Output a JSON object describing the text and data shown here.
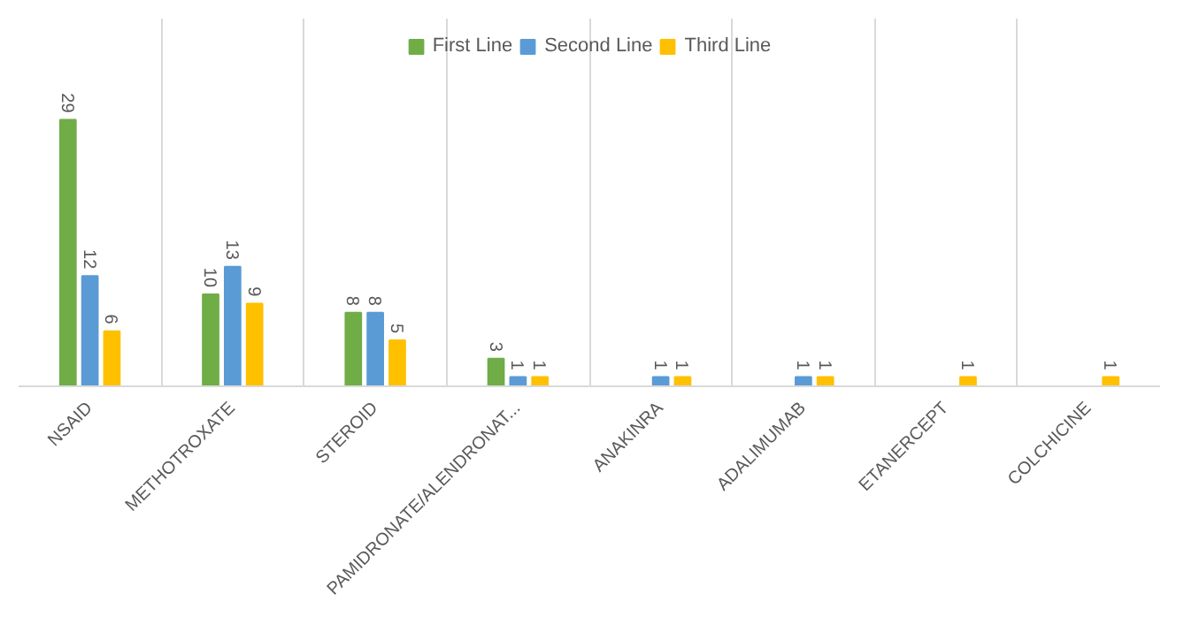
{
  "chart_data": {
    "type": "bar",
    "categories": [
      "NSAID",
      "METHOTROXATE",
      "STEROID",
      "PAMIDRONATE/ALENDRONAT...",
      "ANAKINRA",
      "ADALIMUMAB",
      "ETANERCEPT",
      "COLCHICINE"
    ],
    "series": [
      {
        "name": "First Line",
        "color": "#70ad47",
        "values": [
          29,
          10,
          8,
          3,
          null,
          null,
          null,
          null
        ]
      },
      {
        "name": "Second Line",
        "color": "#5b9bd5",
        "values": [
          12,
          13,
          8,
          1,
          1,
          1,
          null,
          null
        ]
      },
      {
        "name": "Third Line",
        "color": "#ffc000",
        "values": [
          6,
          9,
          5,
          1,
          1,
          1,
          1,
          1
        ]
      }
    ],
    "data_labels": true,
    "legend": "top",
    "grid": "x"
  }
}
